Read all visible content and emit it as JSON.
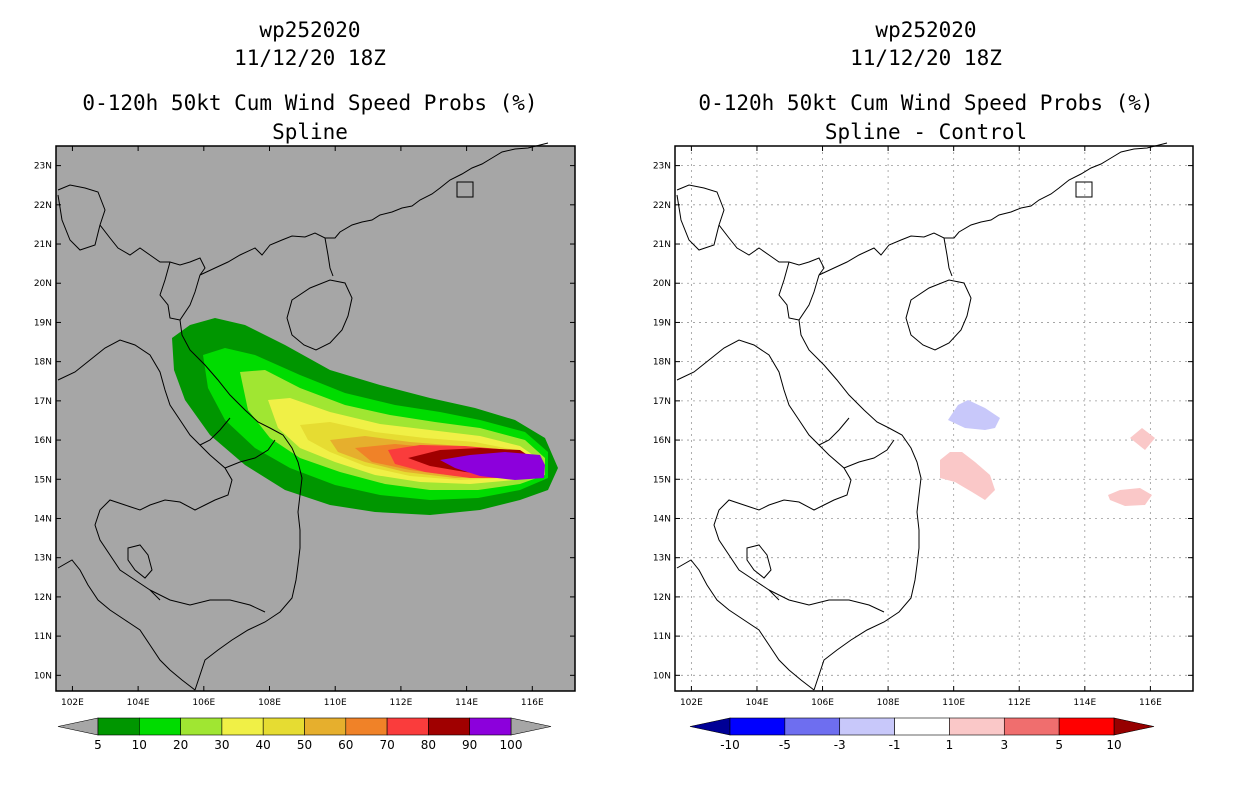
{
  "left": {
    "title_line1": "wp252020",
    "title_line2": "11/12/20 18Z",
    "title_line3": "0-120h 50kt Cum Wind Speed Probs (%)",
    "title_line4": "Spline"
  },
  "right": {
    "title_line1": "wp252020",
    "title_line2": "11/12/20 18Z",
    "title_line3": "0-120h 50kt Cum Wind Speed Probs (%)",
    "title_line4": "Spline - Control"
  },
  "map_extent": {
    "lon": [
      101.5,
      117.3
    ],
    "lat": [
      9.6,
      23.5
    ]
  },
  "lat_ticks": [
    "10N",
    "11N",
    "12N",
    "13N",
    "14N",
    "15N",
    "16N",
    "17N",
    "18N",
    "19N",
    "20N",
    "21N",
    "22N",
    "23N"
  ],
  "lon_ticks": [
    "102E",
    "104E",
    "106E",
    "108E",
    "110E",
    "112E",
    "114E",
    "116E"
  ],
  "colors": {
    "land_left": "#a6a6a6",
    "probs": [
      "#009600",
      "#00dc00",
      "#a0e632",
      "#f0f046",
      "#e6dc32",
      "#e6af2d",
      "#f08228",
      "#fa3c3c",
      "#a00000",
      "#8c00dc"
    ],
    "diff": [
      "#000096",
      "#0000ff",
      "#6e6ef0",
      "#c8c8fa",
      "#ffffff",
      "#fac8c8",
      "#f06e6e",
      "#ff0000",
      "#960000"
    ],
    "diff_negative_patch": "#c8c8fa",
    "diff_positive_patch": "#fac8c8"
  },
  "left_colorbar_labels": [
    "5",
    "10",
    "20",
    "30",
    "40",
    "50",
    "60",
    "70",
    "80",
    "90",
    "100"
  ],
  "right_colorbar_labels": [
    "-10",
    "-5",
    "-3",
    "-1",
    "1",
    "3",
    "5",
    "10"
  ]
}
